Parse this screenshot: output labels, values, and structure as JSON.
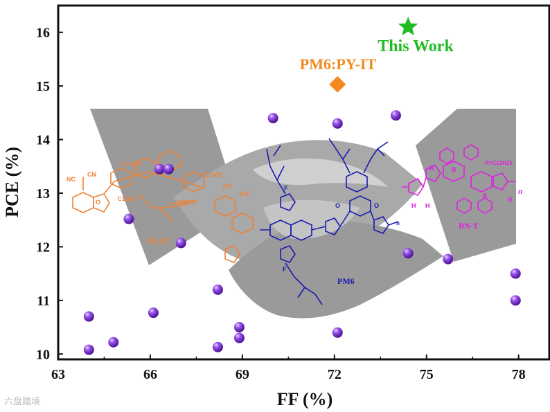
{
  "chart_data": {
    "type": "scatter",
    "xlabel": "FF (%)",
    "ylabel": "PCE (%)",
    "xlim": [
      63,
      79
    ],
    "ylim": [
      9.9,
      16.5
    ],
    "xticks": [
      63,
      66,
      69,
      72,
      75,
      78
    ],
    "yticks": [
      10,
      11,
      12,
      13,
      14,
      15,
      16
    ],
    "grid": false,
    "points": [
      {
        "x": 64.0,
        "y": 10.7
      },
      {
        "x": 64.0,
        "y": 10.08
      },
      {
        "x": 64.8,
        "y": 10.22
      },
      {
        "x": 65.3,
        "y": 12.52
      },
      {
        "x": 66.1,
        "y": 10.77
      },
      {
        "x": 66.3,
        "y": 13.45
      },
      {
        "x": 66.6,
        "y": 13.45
      },
      {
        "x": 67.0,
        "y": 12.07
      },
      {
        "x": 68.2,
        "y": 11.2
      },
      {
        "x": 68.2,
        "y": 10.13
      },
      {
        "x": 68.9,
        "y": 10.5
      },
      {
        "x": 68.9,
        "y": 10.3
      },
      {
        "x": 70.0,
        "y": 14.4
      },
      {
        "x": 72.1,
        "y": 14.3
      },
      {
        "x": 72.1,
        "y": 10.4
      },
      {
        "x": 74.0,
        "y": 14.45
      },
      {
        "x": 74.4,
        "y": 11.88
      },
      {
        "x": 75.7,
        "y": 11.77
      },
      {
        "x": 77.9,
        "y": 11.5
      },
      {
        "x": 77.9,
        "y": 11.0
      }
    ],
    "highlights": [
      {
        "label": "PM6:PY-IT",
        "x": 72.1,
        "y": 15.03,
        "marker": "diamond",
        "color": "#f28a1e"
      },
      {
        "label": "This Work",
        "x": 74.4,
        "y": 16.1,
        "marker": "star",
        "color": "#22bb22"
      }
    ],
    "point_color": "#7a2fd0",
    "structure_labels": [
      {
        "label": "PY-IT",
        "color": "#f08030"
      },
      {
        "label": "PM6",
        "color": "#1a1ab0"
      },
      {
        "label": "BN-T",
        "color": "#e020e0"
      },
      {
        "label": "R=C12H25",
        "color": "#e020e0"
      }
    ]
  },
  "watermark": "六盘踏境"
}
